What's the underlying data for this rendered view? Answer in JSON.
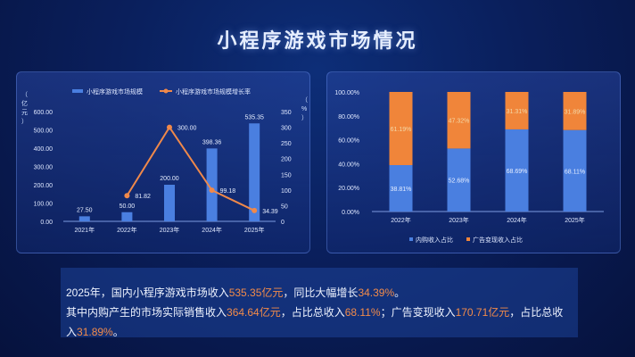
{
  "title": "小程序游戏市场情况",
  "chart_data": [
    {
      "type": "bar+line",
      "title": "",
      "categories": [
        "2021年",
        "2022年",
        "2023年",
        "2024年",
        "2025年"
      ],
      "series": [
        {
          "name": "小程序游戏市场规模",
          "type": "bar",
          "axis": "left",
          "color": "#4a7fe0",
          "values": [
            27.5,
            50.0,
            200.0,
            398.36,
            535.35
          ]
        },
        {
          "name": "小程序游戏市场规模增长率",
          "type": "line",
          "axis": "right",
          "color": "#f0894a",
          "values": [
            null,
            81.82,
            300.0,
            99.18,
            34.39
          ]
        }
      ],
      "ylabel": "（亿元）",
      "ylabel_right": "（%）",
      "ylim": [
        0,
        600
      ],
      "ylim_right": [
        0,
        350
      ],
      "yticks": [
        "0.00",
        "100.00",
        "200.00",
        "300.00",
        "400.00",
        "500.00",
        "600.00"
      ],
      "yticks_right": [
        "0",
        "50",
        "100",
        "150",
        "200",
        "250",
        "300",
        "350"
      ],
      "legend_position": "top"
    },
    {
      "type": "stacked_bar",
      "categories": [
        "2022年",
        "2023年",
        "2024年",
        "2025年"
      ],
      "series": [
        {
          "name": "内购收入占比",
          "color": "#4a7fe0",
          "values": [
            38.81,
            52.68,
            68.69,
            68.11
          ]
        },
        {
          "name": "广告变现收入占比",
          "color": "#f0853a",
          "values": [
            61.19,
            47.32,
            31.31,
            31.89
          ]
        }
      ],
      "ylim": [
        0,
        100
      ],
      "yticks": [
        "0.00%",
        "20.00%",
        "40.00%",
        "60.00%",
        "80.00%",
        "100.00%"
      ],
      "legend_position": "bottom"
    }
  ],
  "summary": {
    "l1": [
      "2025年，国内小程序游戏市场收入",
      "535.35亿元",
      "，同比大幅增长",
      "34.39%",
      "。"
    ],
    "l2": [
      "其中内购产生的市场实际销售收入",
      "364.64亿元",
      "，占比总收入",
      "68.11%",
      "；广告变现收入",
      "170.71亿元",
      "，占比总收入",
      "31.89%",
      "。"
    ]
  }
}
